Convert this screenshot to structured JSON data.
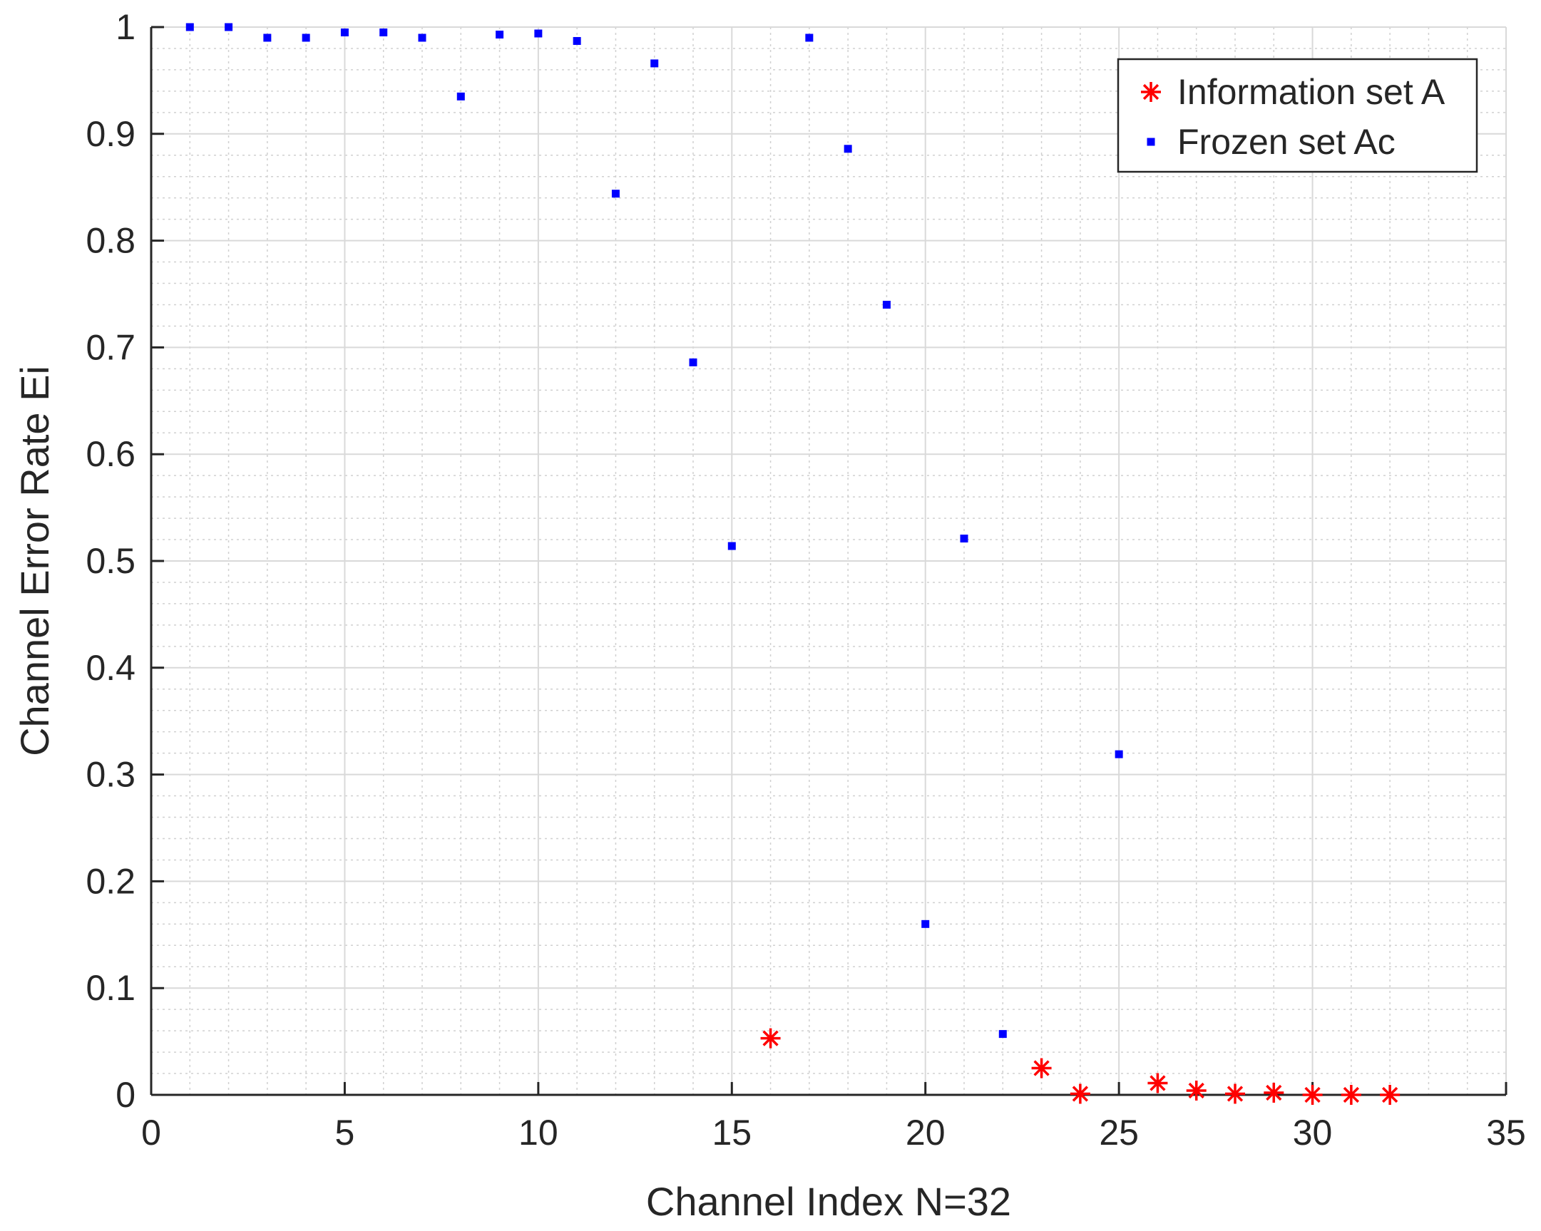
{
  "chart_data": {
    "type": "scatter",
    "title": "",
    "xlabel": "Channel Index N=32",
    "ylabel": "Channel Error Rate Ei",
    "xlim": [
      0,
      35
    ],
    "ylim": [
      0,
      1
    ],
    "x_ticks": [
      0,
      5,
      10,
      15,
      20,
      25,
      30,
      35
    ],
    "x_tick_labels": [
      "0",
      "5",
      "10",
      "15",
      "20",
      "25",
      "30",
      "35"
    ],
    "y_ticks": [
      0,
      0.1,
      0.2,
      0.3,
      0.4,
      0.5,
      0.6,
      0.7,
      0.8,
      0.9,
      1
    ],
    "y_tick_labels": [
      "0",
      "0.1",
      "0.2",
      "0.3",
      "0.4",
      "0.5",
      "0.6",
      "0.7",
      "0.8",
      "0.9",
      "1"
    ],
    "grid": true,
    "minor_grid": true,
    "legend_position": "top-right",
    "series": [
      {
        "name": "Information set A",
        "marker": "asterisk",
        "color": "#ff0000",
        "points": [
          {
            "x": 16,
            "y": 0.053
          },
          {
            "x": 23,
            "y": 0.025
          },
          {
            "x": 24,
            "y": 0.001
          },
          {
            "x": 26,
            "y": 0.011
          },
          {
            "x": 27,
            "y": 0.004
          },
          {
            "x": 28,
            "y": 0.001
          },
          {
            "x": 29,
            "y": 0.002
          },
          {
            "x": 30,
            "y": 0.0
          },
          {
            "x": 31,
            "y": 0.0
          },
          {
            "x": 32,
            "y": 0.0
          }
        ]
      },
      {
        "name": "Frozen set Ac",
        "marker": "square",
        "color": "#0000ff",
        "points": [
          {
            "x": 1,
            "y": 1.0
          },
          {
            "x": 2,
            "y": 1.0
          },
          {
            "x": 3,
            "y": 0.99
          },
          {
            "x": 4,
            "y": 0.99
          },
          {
            "x": 5,
            "y": 0.995
          },
          {
            "x": 6,
            "y": 0.995
          },
          {
            "x": 7,
            "y": 0.99
          },
          {
            "x": 8,
            "y": 0.935
          },
          {
            "x": 9,
            "y": 0.993
          },
          {
            "x": 10,
            "y": 0.994
          },
          {
            "x": 11,
            "y": 0.987
          },
          {
            "x": 12,
            "y": 0.844
          },
          {
            "x": 13,
            "y": 0.966
          },
          {
            "x": 14,
            "y": 0.686
          },
          {
            "x": 15,
            "y": 0.514
          },
          {
            "x": 17,
            "y": 0.99
          },
          {
            "x": 18,
            "y": 0.886
          },
          {
            "x": 19,
            "y": 0.74
          },
          {
            "x": 20,
            "y": 0.16
          },
          {
            "x": 21,
            "y": 0.521
          },
          {
            "x": 22,
            "y": 0.057
          },
          {
            "x": 25,
            "y": 0.319
          }
        ]
      }
    ]
  }
}
